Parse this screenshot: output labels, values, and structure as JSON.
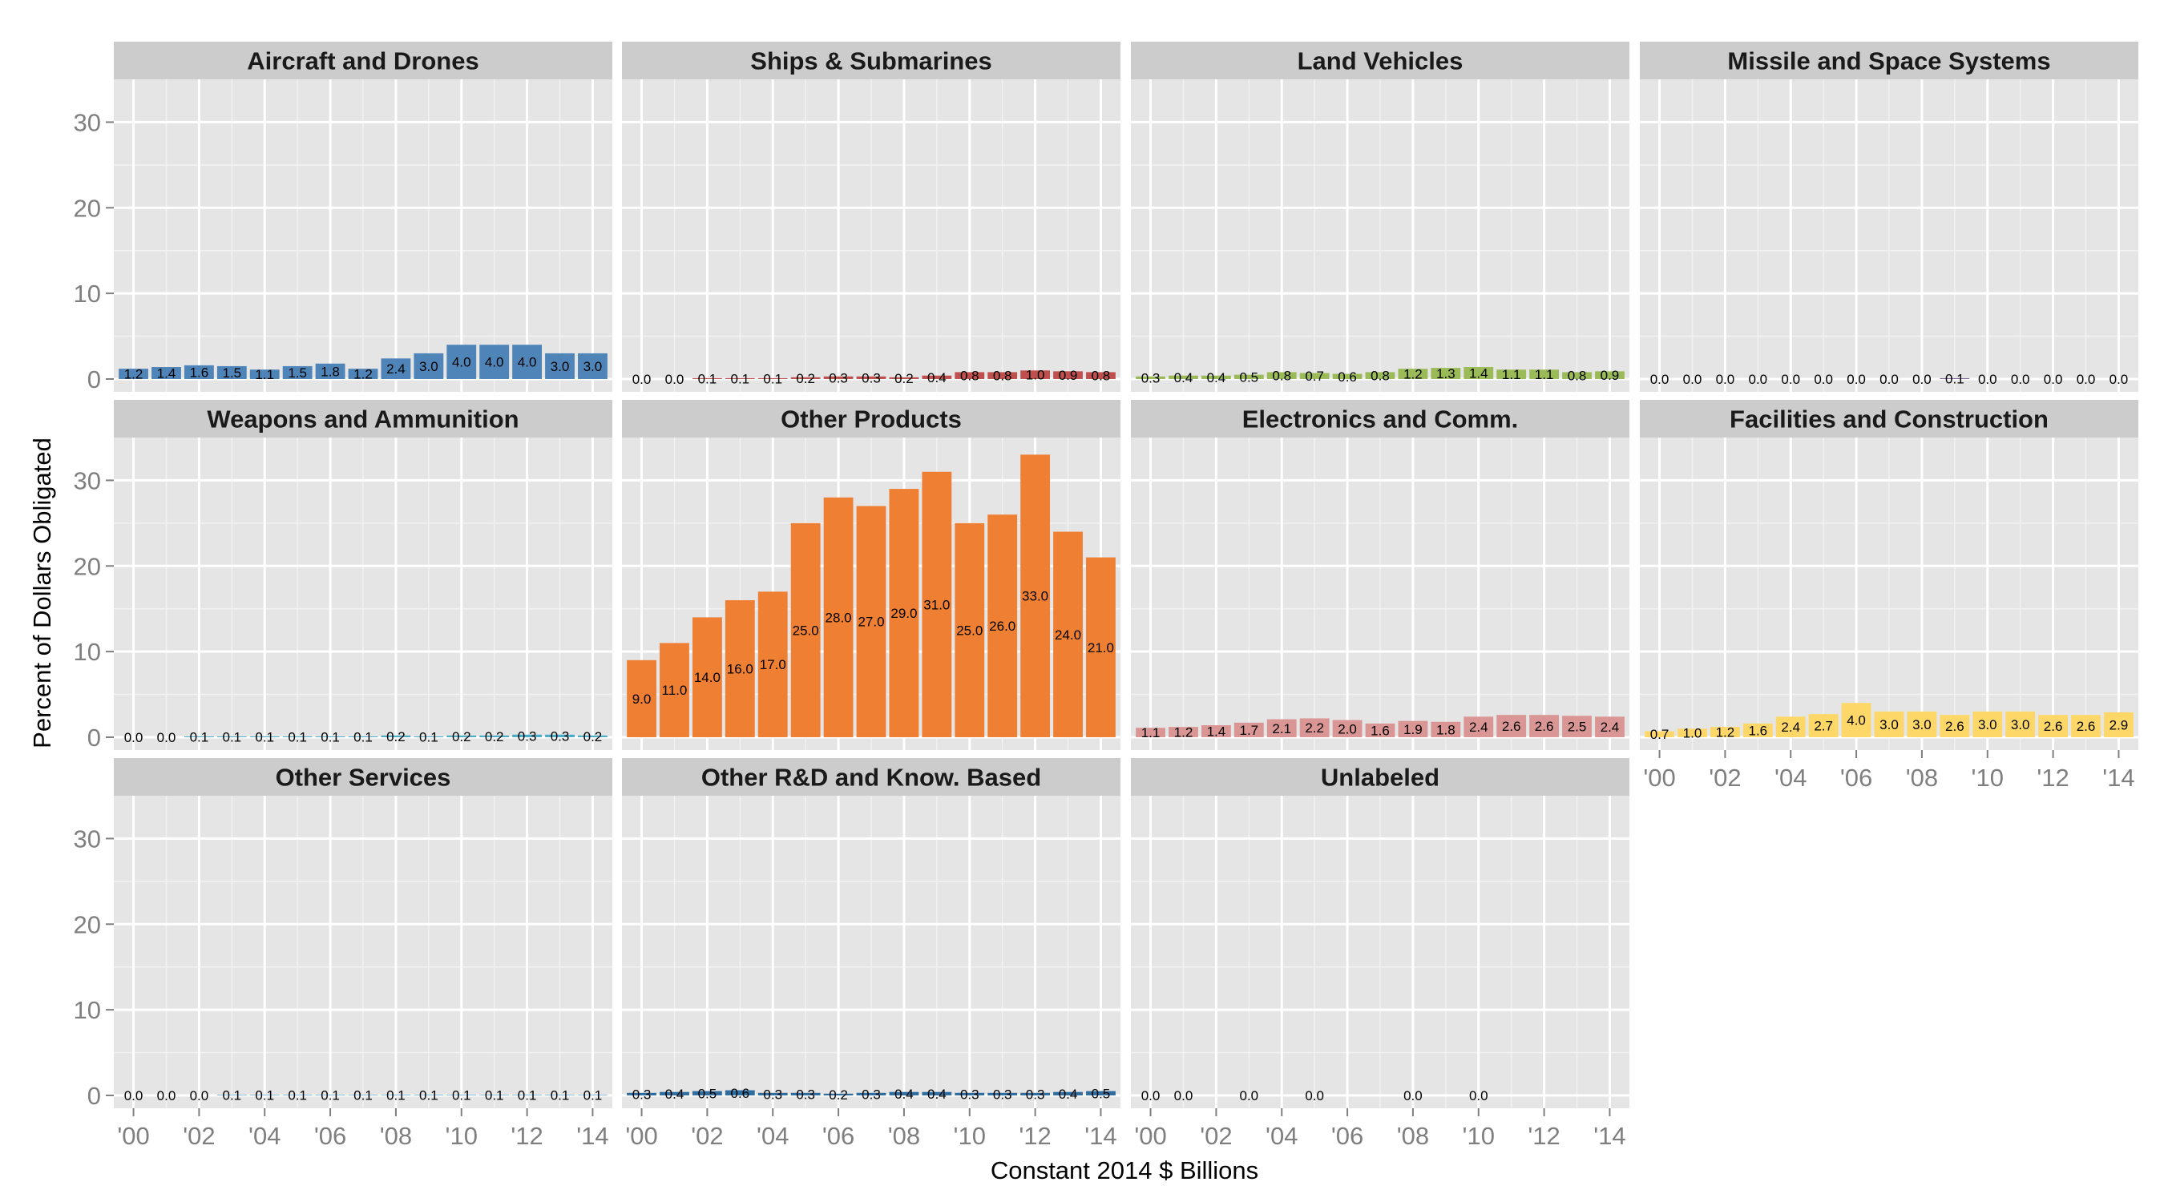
{
  "chart_data": {
    "type": "bar",
    "xlabel": "Constant 2014 $ Billions",
    "ylabel": "Percent of Dollars Obligated",
    "ylim": [
      -1.5,
      35
    ],
    "yticks": [
      0,
      10,
      20,
      30
    ],
    "xticks": [
      "'00",
      "'02",
      "'04",
      "'06",
      "'08",
      "'10",
      "'12",
      "'14"
    ],
    "grid": true,
    "legend": "none",
    "years": [
      2000,
      2001,
      2002,
      2003,
      2004,
      2005,
      2006,
      2007,
      2008,
      2009,
      2010,
      2011,
      2012,
      2013,
      2014
    ],
    "panels": [
      {
        "name": "Aircraft and Drones",
        "color": "#4e84b8",
        "values": [
          1.2,
          1.4,
          1.6,
          1.5,
          1.1,
          1.5,
          1.8,
          1.2,
          2.4,
          3.0,
          4.0,
          4.0,
          4.0,
          3.0,
          3.0
        ],
        "labels": [
          "1.2",
          "1.4",
          "1.6",
          "1.5",
          "1.1",
          "1.5",
          "1.8",
          "1.2",
          "2.4",
          "3.0",
          "4.0",
          "4.0",
          "4.0",
          "3.0",
          "3.0"
        ]
      },
      {
        "name": "Ships & Submarines",
        "color": "#c0504d",
        "values": [
          0.0,
          0.0,
          0.1,
          0.1,
          0.1,
          0.2,
          0.3,
          0.3,
          0.2,
          0.4,
          0.8,
          0.8,
          1.0,
          0.9,
          0.8
        ],
        "labels": [
          "0.0",
          "0.0",
          "0.1",
          "0.1",
          "0.1",
          "0.2",
          "0.3",
          "0.3",
          "0.2",
          "0.4",
          "0.8",
          "0.8",
          "1.0",
          "0.9",
          "0.8"
        ]
      },
      {
        "name": "Land Vehicles",
        "color": "#9bbb59",
        "values": [
          0.3,
          0.4,
          0.4,
          0.5,
          0.8,
          0.7,
          0.6,
          0.8,
          1.2,
          1.3,
          1.4,
          1.1,
          1.1,
          0.8,
          0.9
        ],
        "labels": [
          "0.3",
          "0.4",
          "0.4",
          "0.5",
          "0.8",
          "0.7",
          "0.6",
          "0.8",
          "1.2",
          "1.3",
          "1.4",
          "1.1",
          "1.1",
          "0.8",
          "0.9"
        ]
      },
      {
        "name": "Missile and Space Systems",
        "color": "#8064a2",
        "values": [
          0.0,
          0.0,
          0.0,
          0.0,
          0.0,
          0.0,
          0.0,
          0.0,
          0.0,
          0.1,
          0.0,
          0.0,
          0.0,
          0.0,
          0.0
        ],
        "labels": [
          "0.0",
          "0.0",
          "0.0",
          "0.0",
          "0.0",
          "0.0",
          "0.0",
          "0.0",
          "0.0",
          "0.1",
          "0.0",
          "0.0",
          "0.0",
          "0.0",
          "0.0"
        ]
      },
      {
        "name": "Weapons and Ammunition",
        "color": "#4bacc6",
        "values": [
          0.0,
          0.0,
          0.1,
          0.1,
          0.1,
          0.1,
          0.1,
          0.1,
          0.2,
          0.1,
          0.2,
          0.2,
          0.3,
          0.3,
          0.2
        ],
        "labels": [
          "0.0",
          "0.0",
          "0.1",
          "0.1",
          "0.1",
          "0.1",
          "0.1",
          "0.1",
          "0.2",
          "0.1",
          "0.2",
          "0.2",
          "0.3",
          "0.3",
          "0.2"
        ]
      },
      {
        "name": "Other Products",
        "color": "#ef7f33",
        "values": [
          9.0,
          11.0,
          14.0,
          16.0,
          17.0,
          25.0,
          28.0,
          27.0,
          29.0,
          31.0,
          25.0,
          26.0,
          33.0,
          24.0,
          21.0
        ],
        "labels": [
          "9.0",
          "11.0",
          "14.0",
          "16.0",
          "17.0",
          "25.0",
          "28.0",
          "27.0",
          "29.0",
          "31.0",
          "25.0",
          "26.0",
          "33.0",
          "24.0",
          "21.0"
        ]
      },
      {
        "name": "Electronics and Comm.",
        "color": "#d99694",
        "values": [
          1.1,
          1.2,
          1.4,
          1.7,
          2.1,
          2.2,
          2.0,
          1.6,
          1.9,
          1.8,
          2.4,
          2.6,
          2.6,
          2.5,
          2.4
        ],
        "labels": [
          "1.1",
          "1.2",
          "1.4",
          "1.7",
          "2.1",
          "2.2",
          "2.0",
          "1.6",
          "1.9",
          "1.8",
          "2.4",
          "2.6",
          "2.6",
          "2.5",
          "2.4"
        ]
      },
      {
        "name": "Facilities and Construction",
        "color": "#fdd868",
        "values": [
          0.7,
          1.0,
          1.2,
          1.6,
          2.4,
          2.7,
          4.0,
          3.0,
          3.0,
          2.6,
          3.0,
          3.0,
          2.6,
          2.6,
          2.9
        ],
        "labels": [
          "0.7",
          "1.0",
          "1.2",
          "1.6",
          "2.4",
          "2.7",
          "4.0",
          "3.0",
          "3.0",
          "2.6",
          "3.0",
          "3.0",
          "2.6",
          "2.6",
          "2.9"
        ]
      },
      {
        "name": "Other Services",
        "color": "#8ebbd9",
        "values": [
          0.0,
          0.0,
          0.0,
          0.1,
          0.1,
          0.1,
          0.1,
          0.1,
          0.1,
          0.1,
          0.1,
          0.1,
          0.1,
          0.1,
          0.1
        ],
        "labels": [
          "0.0",
          "0.0",
          "0.0",
          "0.1",
          "0.1",
          "0.1",
          "0.1",
          "0.1",
          "0.1",
          "0.1",
          "0.1",
          "0.1",
          "0.1",
          "0.1",
          "0.1"
        ]
      },
      {
        "name": "Other R&D and Know. Based",
        "color": "#2f6d9f",
        "values": [
          0.3,
          0.4,
          0.5,
          0.6,
          0.3,
          0.3,
          0.2,
          0.3,
          0.4,
          0.4,
          0.3,
          0.3,
          0.3,
          0.4,
          0.5
        ],
        "labels": [
          "0.3",
          "0.4",
          "0.5",
          "0.6",
          "0.3",
          "0.3",
          "0.2",
          "0.3",
          "0.4",
          "0.4",
          "0.3",
          "0.3",
          "0.3",
          "0.4",
          "0.5"
        ]
      },
      {
        "name": "Unlabeled",
        "color": "#7f7f7f",
        "values": [
          0.0,
          0.0,
          null,
          0.0,
          null,
          0.0,
          null,
          null,
          0.0,
          null,
          0.0,
          null,
          null,
          null,
          null
        ],
        "labels": [
          "0.0",
          "0.0",
          null,
          "0.0",
          null,
          "0.0",
          null,
          null,
          "0.0",
          null,
          "0.0",
          null,
          null,
          null,
          null
        ]
      }
    ]
  }
}
